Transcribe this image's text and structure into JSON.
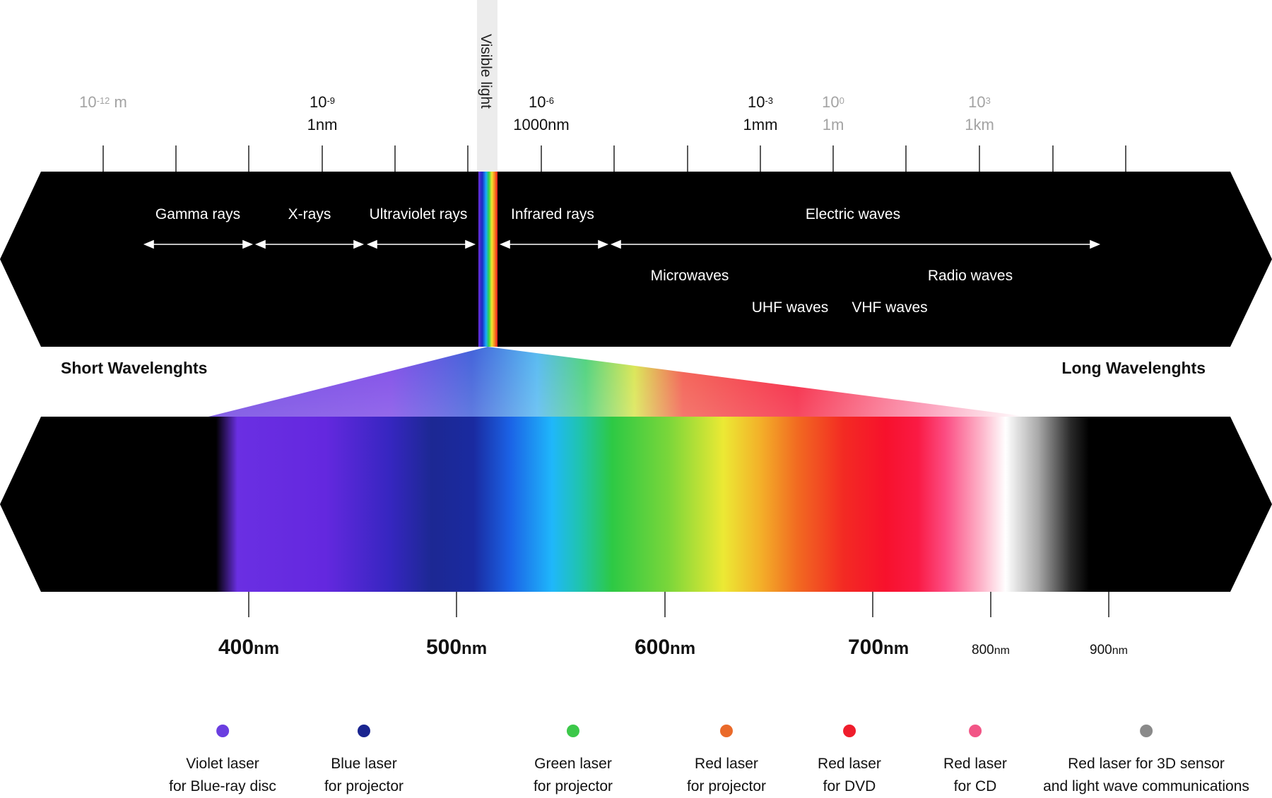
{
  "visible_light_label": "Visible light",
  "scale": [
    {
      "base": "10",
      "exp": "-12",
      "unit": " m",
      "sub": "",
      "muted": true
    },
    {
      "base": "10",
      "exp": "-9",
      "unit": "",
      "sub": "1nm",
      "muted": false
    },
    {
      "base": "10",
      "exp": "-6",
      "unit": "",
      "sub": "1000nm",
      "muted": false
    },
    {
      "base": "10",
      "exp": "-3",
      "unit": "",
      "sub": "1mm",
      "muted": false
    },
    {
      "base": "10",
      "exp": "0",
      "unit": "",
      "sub": "1m",
      "muted": true
    },
    {
      "base": "10",
      "exp": "3",
      "unit": "",
      "sub": "1km",
      "muted": true
    }
  ],
  "bands": {
    "gamma": "Gamma rays",
    "xray": "X-rays",
    "uv": "Ultraviolet rays",
    "ir": "Infrared rays",
    "electric": "Electric waves",
    "micro": "Microwaves",
    "radio": "Radio waves",
    "uhf": "UHF waves",
    "vhf": "VHF waves"
  },
  "short_label": "Short Wavelenghts",
  "long_label": "Long Wavelenghts",
  "nm_marks": [
    {
      "value": "400",
      "unit": "nm",
      "big": true
    },
    {
      "value": "500",
      "unit": "nm",
      "big": true
    },
    {
      "value": "600",
      "unit": "nm",
      "big": true
    },
    {
      "value": "700",
      "unit": "nm",
      "big": true
    },
    {
      "value": "800",
      "unit": "nm",
      "big": false
    },
    {
      "value": "900",
      "unit": "nm",
      "big": false
    }
  ],
  "lasers": [
    {
      "line1": "Violet laser",
      "line2": "for Blue-ray disc",
      "color": "#6a3ee0"
    },
    {
      "line1": "Blue laser",
      "line2": "for projector",
      "color": "#1a2590"
    },
    {
      "line1": "Green laser",
      "line2": "for projector",
      "color": "#3cc84a"
    },
    {
      "line1": "Red laser",
      "line2": "for projector",
      "color": "#ea6a2a"
    },
    {
      "line1": "Red laser",
      "line2": "for DVD",
      "color": "#ef1d2c"
    },
    {
      "line1": "Red laser",
      "line2": "for CD",
      "color": "#f25586"
    },
    {
      "line1": "Red laser for 3D sensor",
      "line2": "and light wave communications",
      "color": "#8a8a8a"
    }
  ]
}
